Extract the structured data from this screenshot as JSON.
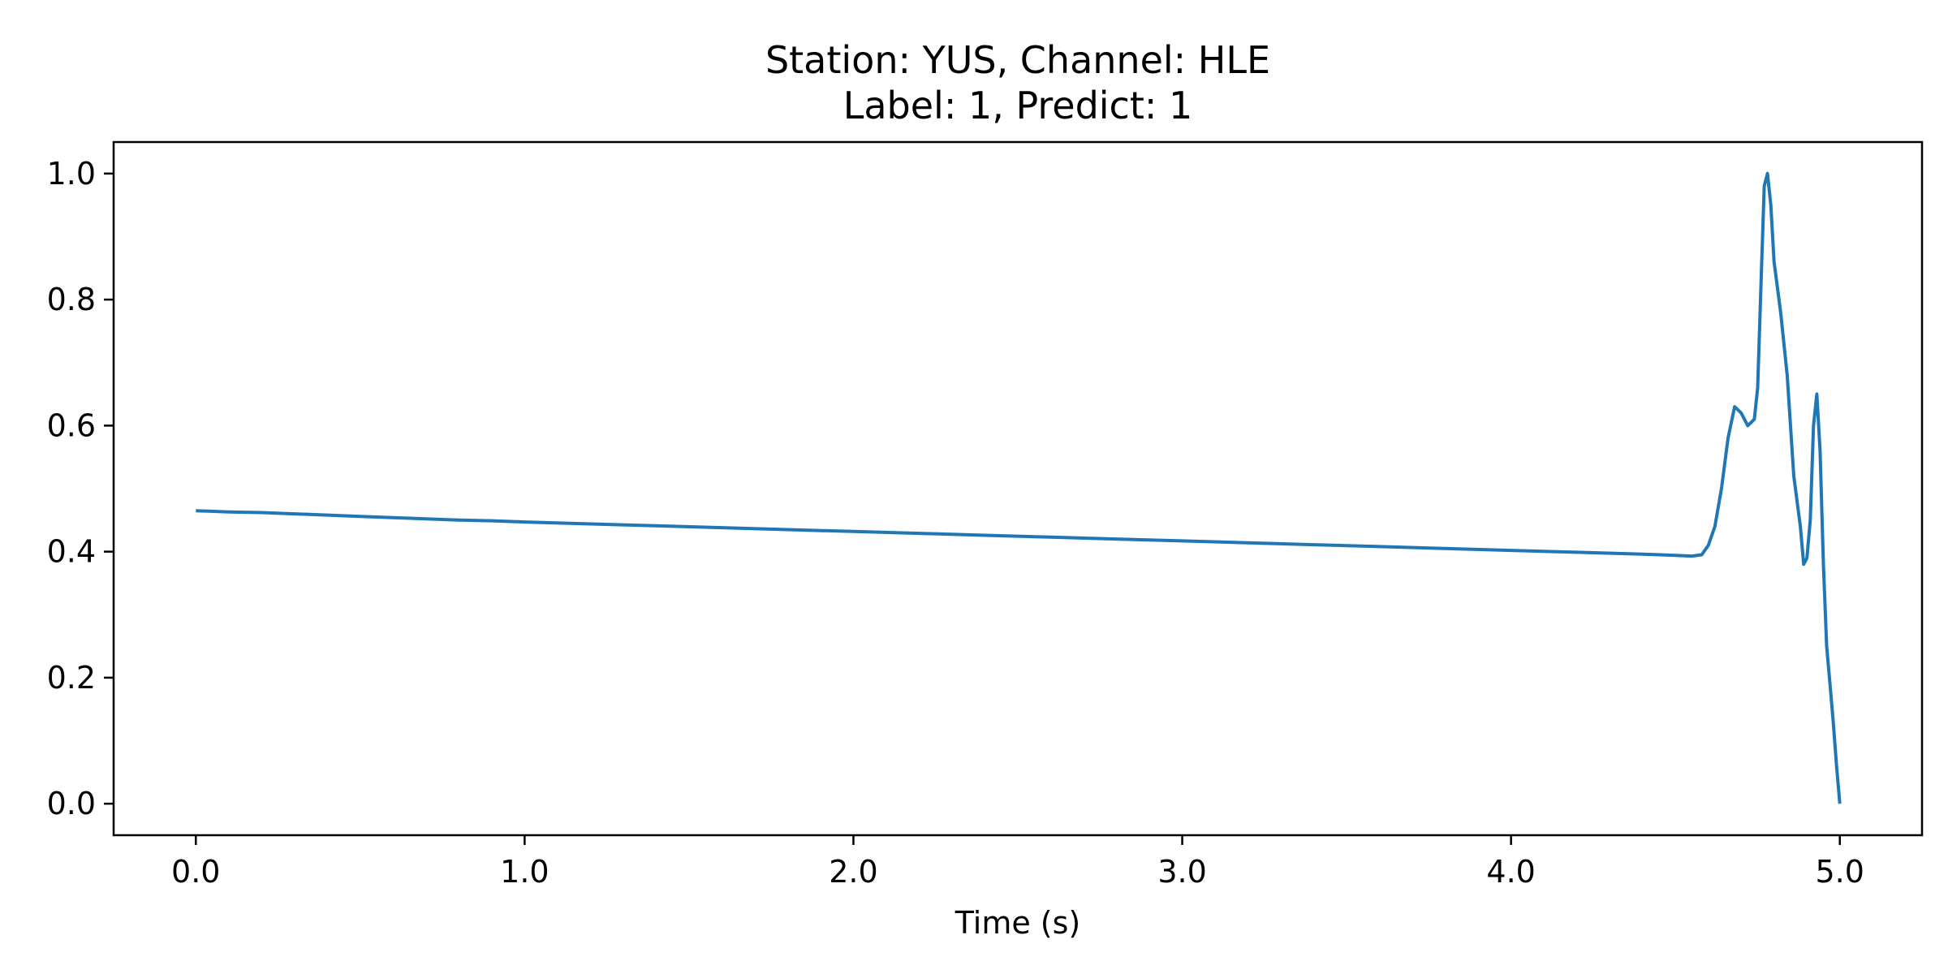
{
  "chart_data": {
    "type": "line",
    "title": [
      "Station: YUS, Channel: HLE",
      "Label: 1, Predict: 1"
    ],
    "xlabel": "Time (s)",
    "ylabel": "",
    "xlim": [
      -0.25,
      5.25
    ],
    "ylim": [
      -0.05,
      1.05
    ],
    "xticks": [
      0.0,
      1.0,
      2.0,
      3.0,
      4.0,
      5.0
    ],
    "xtick_labels": [
      "0.0",
      "1.0",
      "2.0",
      "3.0",
      "4.0",
      "5.0"
    ],
    "yticks": [
      0.0,
      0.2,
      0.4,
      0.6,
      0.8,
      1.0
    ],
    "ytick_labels": [
      "0.0",
      "0.2",
      "0.4",
      "0.6",
      "0.8",
      "1.0"
    ],
    "grid": false,
    "legend": "none",
    "series": [
      {
        "color": "#1f77b4",
        "x": [
          0.0,
          0.1,
          0.2,
          0.3,
          0.4,
          0.5,
          0.6,
          0.7,
          0.8,
          0.9,
          1.0,
          1.2,
          1.4,
          1.6,
          1.8,
          2.0,
          2.2,
          2.4,
          2.6,
          2.8,
          3.0,
          3.2,
          3.4,
          3.6,
          3.8,
          4.0,
          4.2,
          4.4,
          4.5,
          4.55,
          4.58,
          4.6,
          4.62,
          4.64,
          4.66,
          4.68,
          4.7,
          4.72,
          4.74,
          4.75,
          4.76,
          4.77,
          4.78,
          4.79,
          4.8,
          4.82,
          4.84,
          4.86,
          4.88,
          4.89,
          4.9,
          4.91,
          4.92,
          4.93,
          4.94,
          4.95,
          4.96,
          4.97,
          4.98,
          4.99,
          5.0
        ],
        "y": [
          0.465,
          0.463,
          0.462,
          0.46,
          0.458,
          0.456,
          0.454,
          0.452,
          0.45,
          0.449,
          0.447,
          0.444,
          0.441,
          0.438,
          0.435,
          0.432,
          0.429,
          0.426,
          0.423,
          0.42,
          0.417,
          0.414,
          0.411,
          0.408,
          0.405,
          0.402,
          0.399,
          0.396,
          0.394,
          0.393,
          0.395,
          0.41,
          0.44,
          0.5,
          0.58,
          0.63,
          0.62,
          0.6,
          0.61,
          0.66,
          0.82,
          0.98,
          1.0,
          0.95,
          0.86,
          0.78,
          0.68,
          0.52,
          0.44,
          0.38,
          0.39,
          0.45,
          0.6,
          0.65,
          0.56,
          0.38,
          0.25,
          0.19,
          0.13,
          0.06,
          0.0
        ]
      }
    ]
  }
}
